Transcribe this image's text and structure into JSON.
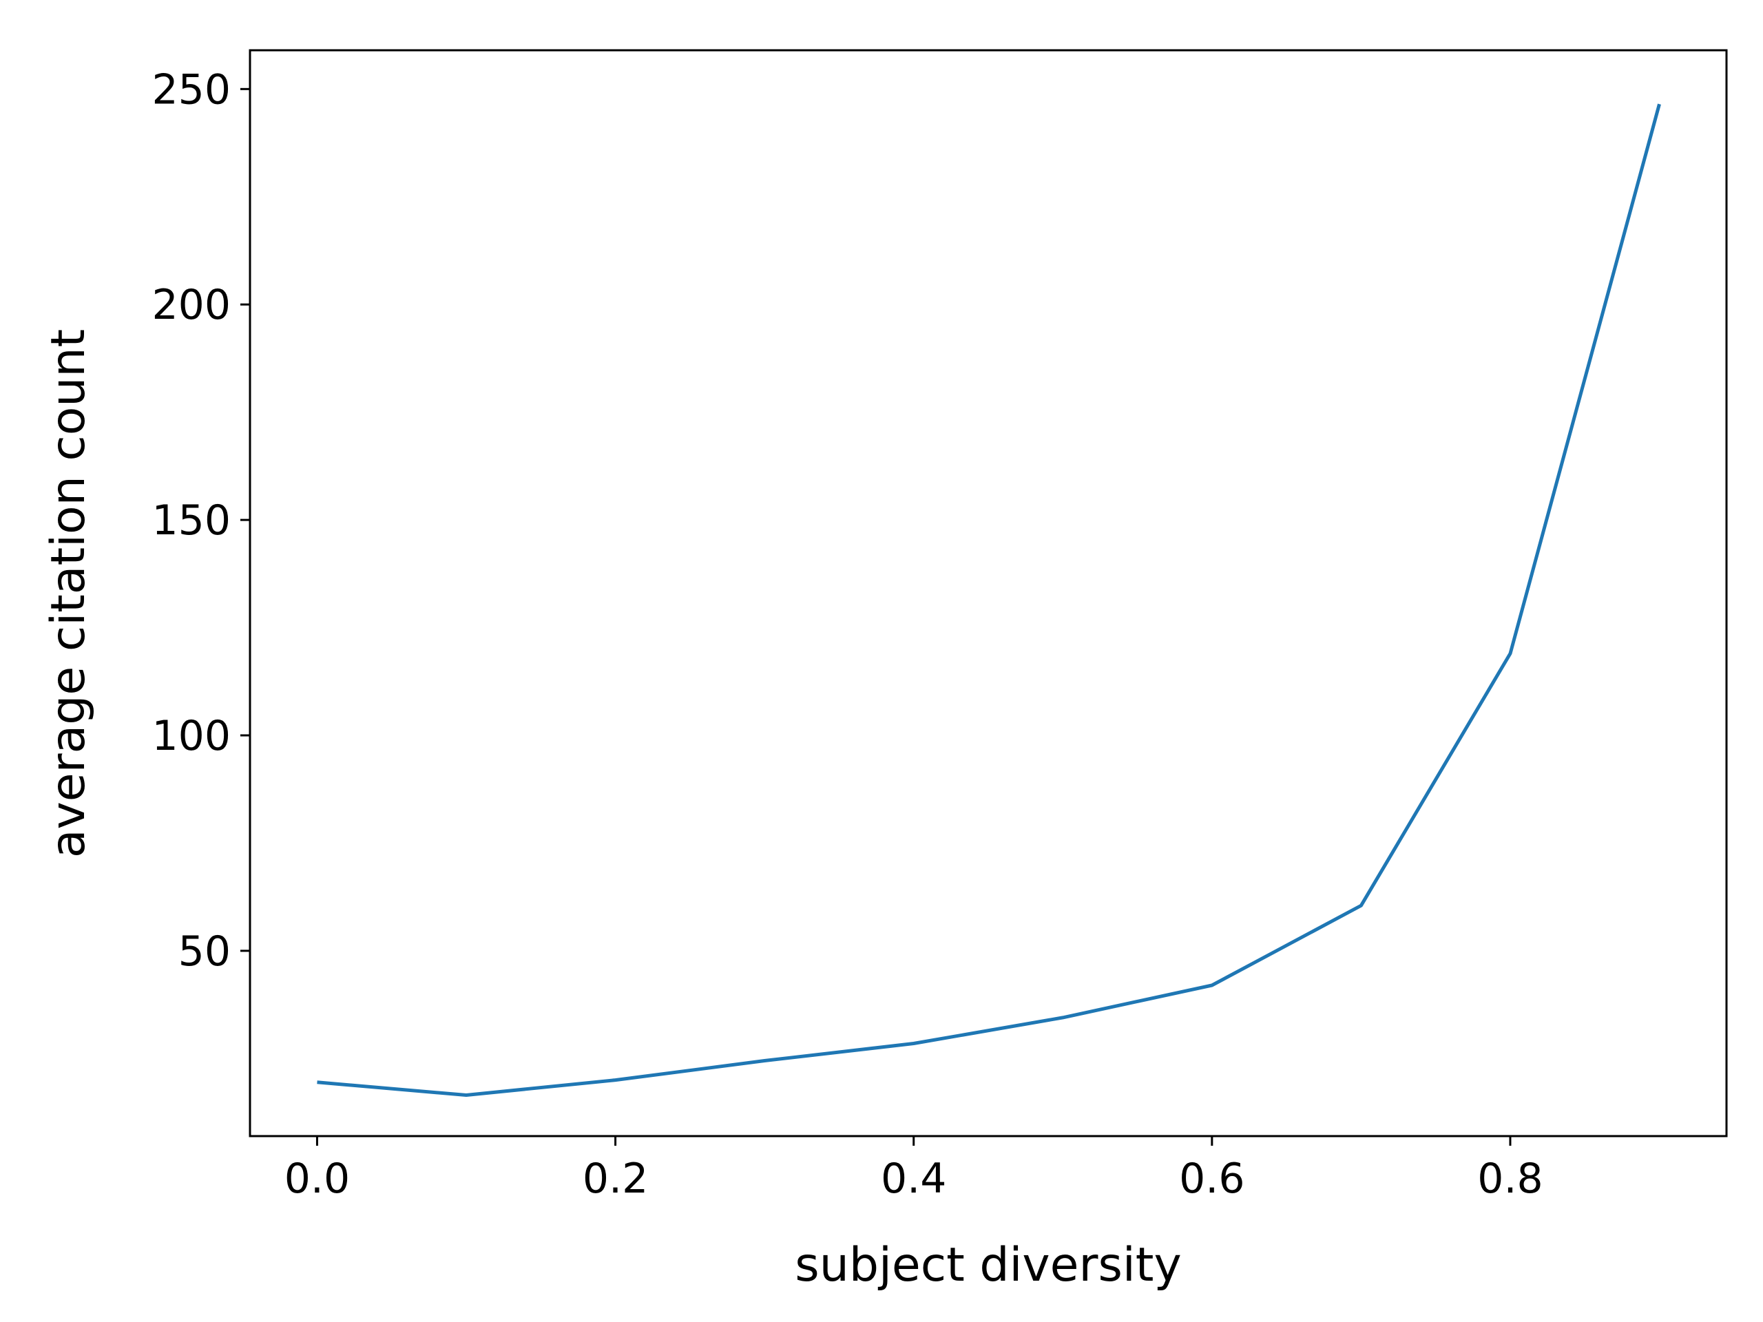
{
  "chart_data": {
    "type": "line",
    "title": "",
    "xlabel": "subject diversity",
    "ylabel": "average citation count",
    "xlim": [
      -0.045,
      0.945
    ],
    "ylim": [
      7,
      259
    ],
    "xticks": [
      0.0,
      0.2,
      0.4,
      0.6,
      0.8
    ],
    "xtick_labels": [
      "0.0",
      "0.2",
      "0.4",
      "0.6",
      "0.8"
    ],
    "yticks": [
      50,
      100,
      150,
      200,
      250
    ],
    "ytick_labels": [
      "50",
      "100",
      "150",
      "200",
      "250"
    ],
    "grid": false,
    "legend": "none",
    "series": [
      {
        "color": "#1f77b4",
        "x": [
          0.0,
          0.1,
          0.2,
          0.3,
          0.4,
          0.5,
          0.6,
          0.7,
          0.8,
          0.9
        ],
        "y": [
          19.5,
          16.5,
          20,
          24.5,
          28.5,
          34.5,
          42,
          60.5,
          119,
          246.5
        ]
      }
    ]
  }
}
